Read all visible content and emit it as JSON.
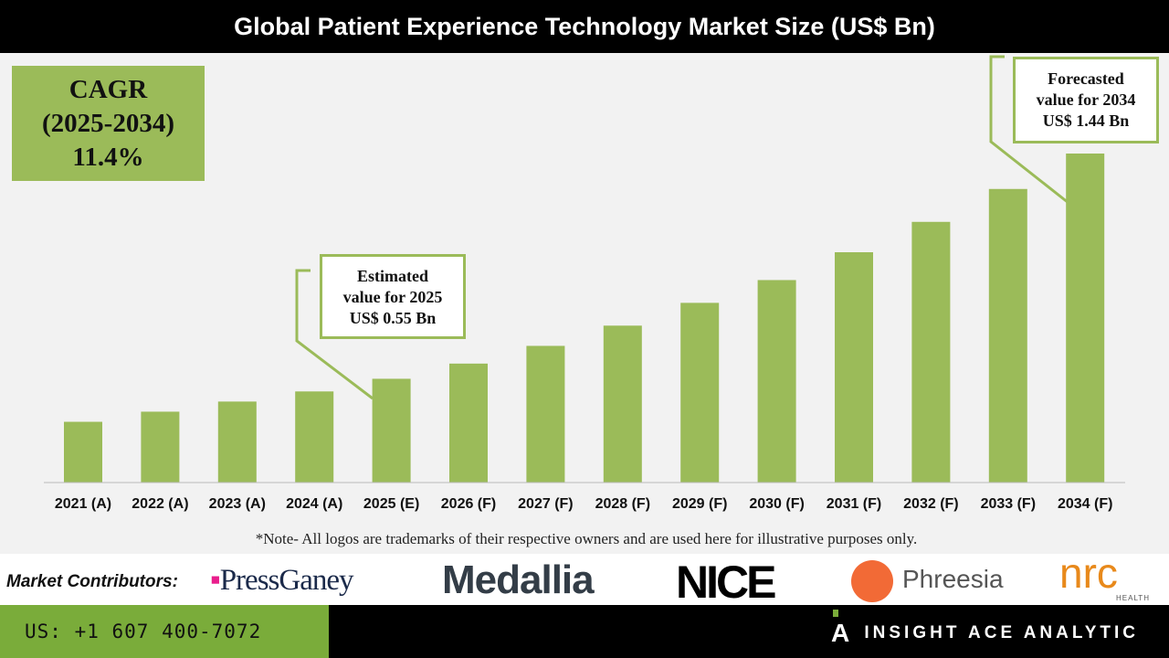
{
  "chart_data": {
    "type": "bar",
    "title": "Global Patient Experience Technology Market Size (US$ Bn)",
    "categories": [
      "2021 (A)",
      "2022 (A)",
      "2023 (A)",
      "2024 (A)",
      "2025 (E)",
      "2026 (F)",
      "2027 (F)",
      "2028 (F)",
      "2029 (F)",
      "2030 (F)",
      "2031 (F)",
      "2032 (F)",
      "2033 (F)",
      "2034 (F)"
    ],
    "values": [
      0.38,
      0.42,
      0.46,
      0.5,
      0.55,
      0.61,
      0.68,
      0.76,
      0.85,
      0.94,
      1.05,
      1.17,
      1.3,
      1.44
    ],
    "xlabel": "",
    "ylabel": "",
    "ylim": [
      0.14,
      1.83
    ],
    "grid": false,
    "bar_color": "#9bbb59"
  },
  "cagr": {
    "line1": "CAGR",
    "line2": "(2025-2034)",
    "line3": "11.4%"
  },
  "callout_2025": {
    "line1": "Estimated",
    "line2": "value for 2025",
    "line3": "US$ 0.55 Bn"
  },
  "callout_2034": {
    "line1": "Forecasted",
    "line2": "value for 2034",
    "line3": "US$ 1.44 Bn"
  },
  "note": "*Note- All logos are trademarks of their respective owners and are used here for illustrative purposes only.",
  "contributors": {
    "label": "Market Contributors:",
    "logos": [
      "PressGaney",
      "Medallia",
      "NICE",
      "Phreesia",
      "nrc",
      "HEALTH"
    ]
  },
  "footer": {
    "phone": "US: +1 607 400-7072",
    "brand": "INSIGHT ACE ANALYTIC"
  },
  "colors": {
    "accent": "#9bbb59",
    "footer_green": "#7aac3a",
    "press_ganey": "#e91e8c",
    "phreesia": "#f26a36",
    "nrc": "#e8891b"
  }
}
